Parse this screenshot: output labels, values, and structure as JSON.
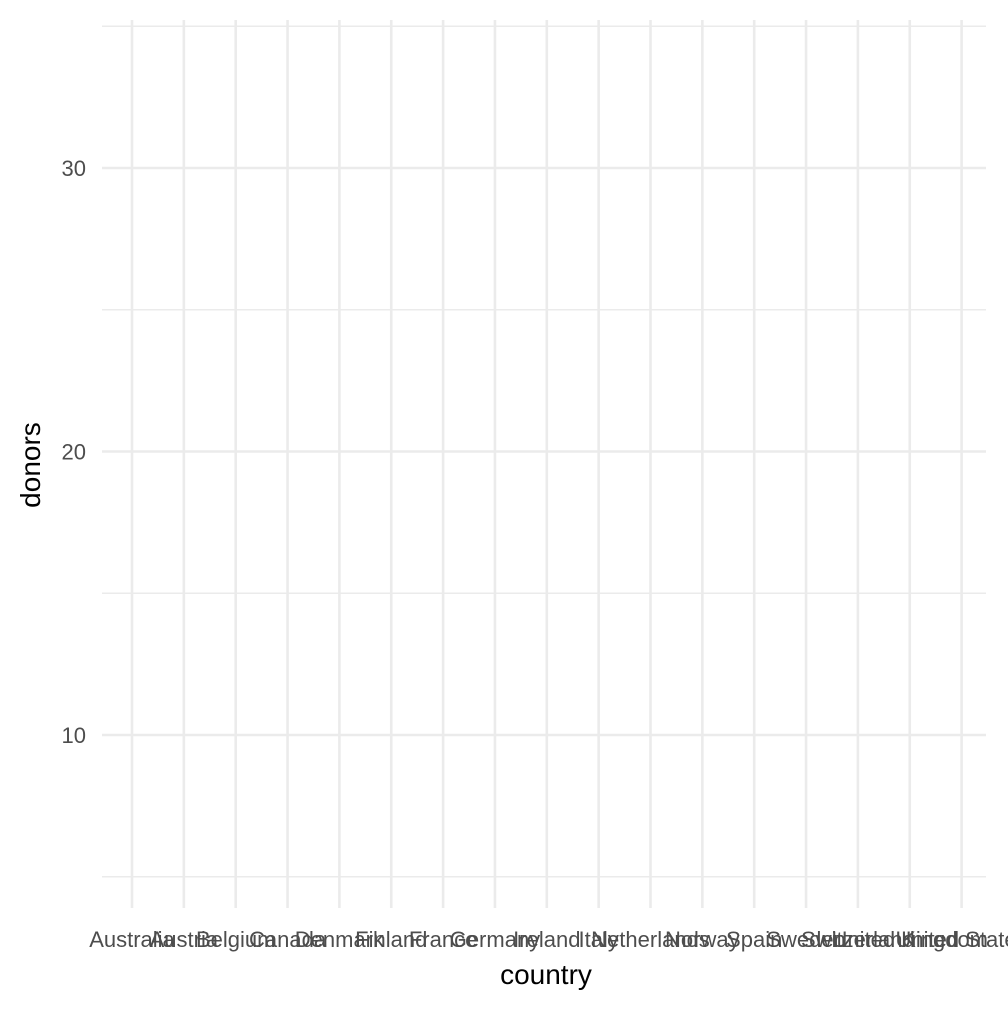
{
  "chart_data": {
    "type": "scatter",
    "title": "",
    "xlabel": "country",
    "ylabel": "donors",
    "categories": [
      "Australia",
      "Austria",
      "Belgium",
      "Canada",
      "Denmark",
      "Finland",
      "France",
      "Germany",
      "Ireland",
      "Italy",
      "Netherlands",
      "Norway",
      "Spain",
      "Sweden",
      "Switzerland",
      "United Kingdom",
      "United States"
    ],
    "y_ticks": [
      10,
      20,
      30
    ],
    "y_minor_ticks": [
      5,
      15,
      25,
      35
    ],
    "ylim": [
      4.5,
      35.5
    ],
    "series": [],
    "grid": true,
    "legend": "none",
    "colors": {
      "grid": "#ebebeb",
      "tick_text": "#4d4d4d",
      "title_text": "#000000",
      "background": "#ffffff"
    }
  }
}
